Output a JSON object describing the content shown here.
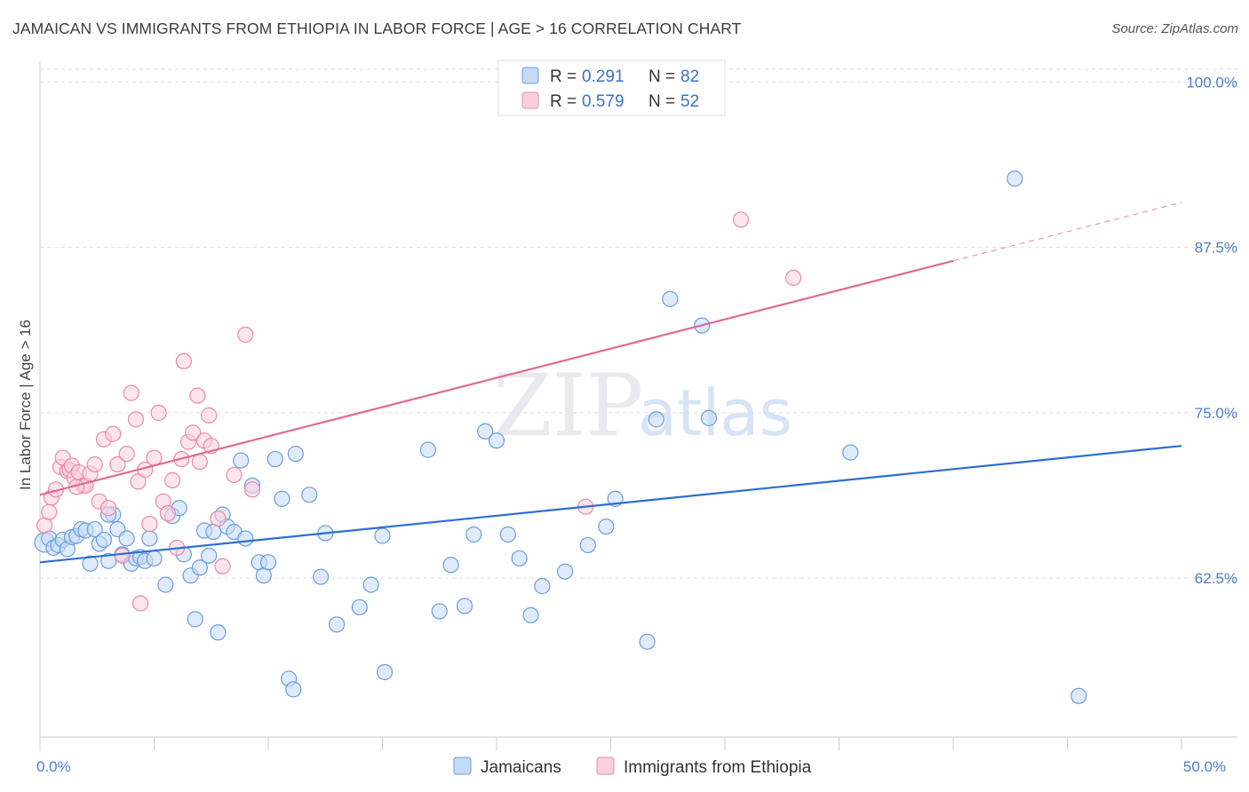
{
  "header": {
    "title": "JAMAICAN VS IMMIGRANTS FROM ETHIOPIA IN LABOR FORCE | AGE > 16 CORRELATION CHART",
    "source": "Source: ZipAtlas.com"
  },
  "watermark": {
    "part1": "ZIP",
    "part2": "atlas"
  },
  "legend": {
    "rows": [
      {
        "r_label": "R =",
        "r_value": "0.291",
        "n_label": "N =",
        "n_value": "82",
        "color": "#8fb8ec"
      },
      {
        "r_label": "R =",
        "r_value": "0.579",
        "n_label": "N =",
        "n_value": "52",
        "color": "#f3a9c0"
      }
    ]
  },
  "colors": {
    "blue_fill": "#c5daf5",
    "blue_stroke": "#6b9de0",
    "blue_line": "#2b6fd0",
    "pink_fill": "#fbd0dc",
    "pink_stroke": "#ea8aa8",
    "pink_line": "#e06a94",
    "grid": "#dddddd"
  },
  "chart_data": {
    "type": "scatter",
    "title": "JAMAICAN VS IMMIGRANTS FROM ETHIOPIA IN LABOR FORCE | AGE > 16 CORRELATION CHART",
    "ylabel": "In Labor Force | Age > 16",
    "xlabel": "",
    "xlim": [
      0,
      50
    ],
    "ylim": [
      50.5,
      101.5
    ],
    "x_ticks": [
      0,
      5,
      10,
      15,
      20,
      25,
      30,
      35,
      40,
      45,
      50
    ],
    "x_tick_labels": [
      {
        "value": 0,
        "label": "0.0%"
      },
      {
        "value": 50,
        "label": "50.0%"
      }
    ],
    "y_ticks": [
      {
        "value": 62.5,
        "label": "62.5%"
      },
      {
        "value": 75.0,
        "label": "75.0%"
      },
      {
        "value": 87.5,
        "label": "87.5%"
      },
      {
        "value": 100.0,
        "label": "100.0%"
      }
    ],
    "grid": true,
    "legend_position": "top-center",
    "series": [
      {
        "name": "Jamaicans",
        "color": "#8fb8ec",
        "trend": {
          "x0": 0,
          "y0": 63.7,
          "x1": 50,
          "y1": 72.5,
          "solid_to": 50
        },
        "points": [
          [
            0.2,
            65.2
          ],
          [
            0.4,
            65.5
          ],
          [
            0.6,
            64.8
          ],
          [
            0.8,
            65.0
          ],
          [
            1.0,
            65.4
          ],
          [
            1.2,
            64.7
          ],
          [
            1.4,
            65.6
          ],
          [
            1.6,
            65.7
          ],
          [
            1.8,
            66.2
          ],
          [
            2.0,
            66.1
          ],
          [
            2.2,
            63.6
          ],
          [
            2.4,
            66.2
          ],
          [
            2.6,
            65.1
          ],
          [
            2.8,
            65.4
          ],
          [
            3.0,
            63.8
          ],
          [
            3.2,
            67.3
          ],
          [
            3.4,
            66.2
          ],
          [
            3.6,
            64.3
          ],
          [
            3.8,
            65.5
          ],
          [
            4.0,
            63.6
          ],
          [
            4.2,
            64.0
          ],
          [
            4.4,
            64.1
          ],
          [
            4.6,
            63.8
          ],
          [
            4.8,
            65.5
          ],
          [
            5.0,
            64.0
          ],
          [
            5.5,
            62.0
          ],
          [
            5.8,
            67.2
          ],
          [
            6.1,
            67.8
          ],
          [
            6.3,
            64.3
          ],
          [
            6.6,
            62.7
          ],
          [
            6.8,
            59.4
          ],
          [
            7.0,
            63.3
          ],
          [
            7.2,
            66.1
          ],
          [
            7.4,
            64.2
          ],
          [
            7.6,
            66.0
          ],
          [
            7.8,
            58.4
          ],
          [
            8.0,
            67.3
          ],
          [
            8.2,
            66.4
          ],
          [
            8.5,
            66.0
          ],
          [
            8.8,
            71.4
          ],
          [
            9.0,
            65.5
          ],
          [
            9.3,
            69.5
          ],
          [
            9.6,
            63.7
          ],
          [
            9.8,
            62.7
          ],
          [
            10.0,
            63.7
          ],
          [
            10.3,
            71.5
          ],
          [
            10.6,
            68.5
          ],
          [
            11.2,
            71.9
          ],
          [
            10.9,
            54.9
          ],
          [
            11.1,
            54.1
          ],
          [
            11.8,
            68.8
          ],
          [
            12.3,
            62.6
          ],
          [
            12.5,
            65.9
          ],
          [
            13.0,
            59.0
          ],
          [
            14.0,
            60.3
          ],
          [
            14.5,
            62.0
          ],
          [
            15.0,
            65.7
          ],
          [
            15.1,
            55.4
          ],
          [
            17.0,
            72.2
          ],
          [
            17.5,
            60.0
          ],
          [
            18.0,
            63.5
          ],
          [
            18.6,
            60.4
          ],
          [
            19.0,
            65.8
          ],
          [
            19.5,
            73.6
          ],
          [
            20.0,
            72.9
          ],
          [
            20.5,
            65.8
          ],
          [
            21.0,
            64.0
          ],
          [
            21.5,
            59.7
          ],
          [
            22.0,
            61.9
          ],
          [
            23.0,
            63.0
          ],
          [
            24.0,
            65.0
          ],
          [
            24.8,
            66.4
          ],
          [
            25.2,
            68.5
          ],
          [
            26.6,
            57.7
          ],
          [
            27.0,
            74.5
          ],
          [
            27.6,
            83.6
          ],
          [
            29.0,
            81.6
          ],
          [
            29.3,
            74.6
          ],
          [
            35.5,
            72.0
          ],
          [
            42.7,
            92.7
          ],
          [
            45.5,
            53.6
          ],
          [
            3.0,
            67.3
          ]
        ]
      },
      {
        "name": "Immigrants from Ethiopia",
        "color": "#f3a9c0",
        "trend": {
          "x0": 0,
          "y0": 68.8,
          "x1": 50,
          "y1": 90.9,
          "solid_to": 40
        },
        "points": [
          [
            0.2,
            66.5
          ],
          [
            0.4,
            67.5
          ],
          [
            0.5,
            68.6
          ],
          [
            0.7,
            69.2
          ],
          [
            0.9,
            70.9
          ],
          [
            1.0,
            71.6
          ],
          [
            1.2,
            70.6
          ],
          [
            1.3,
            70.7
          ],
          [
            1.4,
            71.0
          ],
          [
            1.5,
            70.1
          ],
          [
            1.7,
            70.5
          ],
          [
            1.9,
            69.5
          ],
          [
            2.0,
            69.5
          ],
          [
            2.2,
            70.4
          ],
          [
            2.4,
            71.1
          ],
          [
            2.6,
            68.3
          ],
          [
            2.8,
            73.0
          ],
          [
            3.0,
            67.8
          ],
          [
            3.2,
            73.4
          ],
          [
            3.4,
            71.1
          ],
          [
            3.6,
            64.2
          ],
          [
            3.8,
            71.9
          ],
          [
            4.0,
            76.5
          ],
          [
            4.2,
            74.5
          ],
          [
            4.3,
            69.8
          ],
          [
            4.4,
            60.6
          ],
          [
            4.6,
            70.7
          ],
          [
            4.8,
            66.6
          ],
          [
            5.0,
            71.6
          ],
          [
            5.2,
            75.0
          ],
          [
            5.4,
            68.3
          ],
          [
            5.6,
            67.4
          ],
          [
            5.8,
            69.9
          ],
          [
            6.0,
            64.8
          ],
          [
            6.2,
            71.5
          ],
          [
            6.3,
            78.9
          ],
          [
            6.5,
            72.8
          ],
          [
            6.7,
            73.5
          ],
          [
            6.9,
            76.3
          ],
          [
            7.0,
            71.3
          ],
          [
            7.2,
            72.9
          ],
          [
            7.4,
            74.8
          ],
          [
            7.5,
            72.5
          ],
          [
            7.8,
            67.0
          ],
          [
            8.0,
            63.4
          ],
          [
            8.5,
            70.3
          ],
          [
            9.0,
            80.9
          ],
          [
            9.3,
            69.2
          ],
          [
            23.9,
            67.9
          ],
          [
            30.7,
            89.6
          ],
          [
            33.0,
            85.2
          ],
          [
            1.6,
            69.4
          ]
        ]
      }
    ]
  }
}
